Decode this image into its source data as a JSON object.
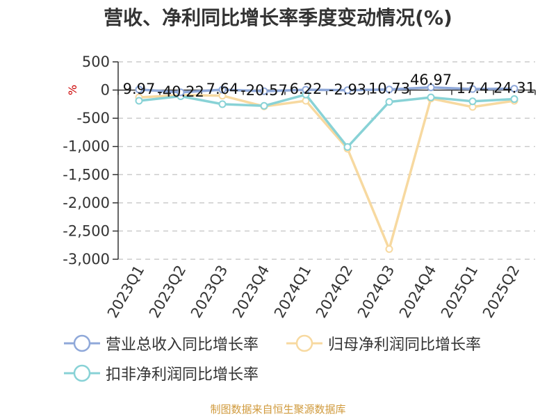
{
  "title": "营收、净利同比增长率季度变动情况(%)",
  "footer": "制图数据来自恒生聚源数据库",
  "colors": {
    "revenue": "#8fa8d9",
    "net_profit": "#f7d9a0",
    "deducted_profit": "#88d2d6",
    "axis": "#333333",
    "grid": "#cccccc",
    "unit": "#cc0000"
  },
  "chart_data": {
    "type": "line",
    "ylabel": "%",
    "ylim": [
      -3000,
      500
    ],
    "yticks": [
      500,
      0,
      -500,
      -1000,
      -1500,
      -2000,
      -2500,
      -3000
    ],
    "ytick_labels": [
      "500",
      "0",
      "-500",
      "-1,000",
      "-1,500",
      "-2,000",
      "-2,500",
      "-3,000"
    ],
    "categories": [
      "2023Q1",
      "2023Q2",
      "2023Q3",
      "2023Q4",
      "2024Q1",
      "2024Q2",
      "2024Q3",
      "2024Q4",
      "2025Q1",
      "2025Q2"
    ],
    "grid": true,
    "legend_position": "bottom",
    "series": [
      {
        "name": "营业总收入同比增长率",
        "color": "#8fa8d9",
        "values": [
          9.97,
          -40.22,
          7.64,
          -20.57,
          6.22,
          -2.93,
          10.73,
          46.97,
          17.4,
          24.31
        ],
        "labels": [
          "9.97",
          "-40.22",
          "7.64",
          "-20.57",
          "6.22",
          "-2.93",
          "10.73",
          "46.97",
          "17.4",
          "24.31"
        ]
      },
      {
        "name": "归母净利润同比增长率",
        "color": "#f7d9a0",
        "values": [
          -130,
          -90,
          -100,
          -290,
          -190,
          -1040,
          -2820,
          -150,
          -300,
          -190
        ]
      },
      {
        "name": "扣非净利润同比增长率",
        "color": "#88d2d6",
        "values": [
          -190,
          -110,
          -250,
          -280,
          -80,
          -1010,
          -210,
          -130,
          -200,
          -160
        ]
      }
    ]
  }
}
